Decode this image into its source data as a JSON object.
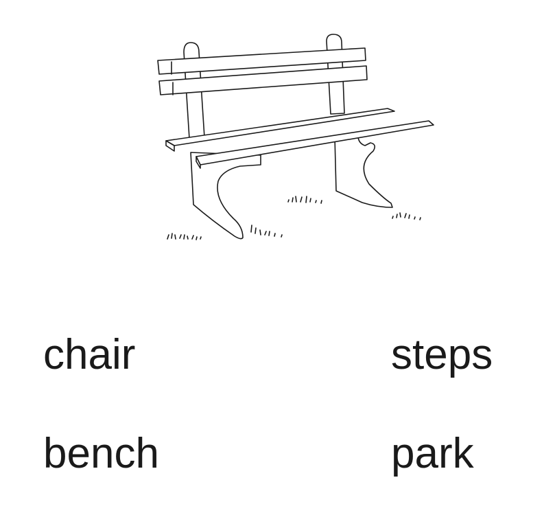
{
  "illustration": {
    "icon": "park-bench-icon",
    "stroke_color": "#1a1a1a"
  },
  "words": {
    "top_left": "chair",
    "top_right": "steps",
    "bottom_left": "bench",
    "bottom_right": "park"
  }
}
